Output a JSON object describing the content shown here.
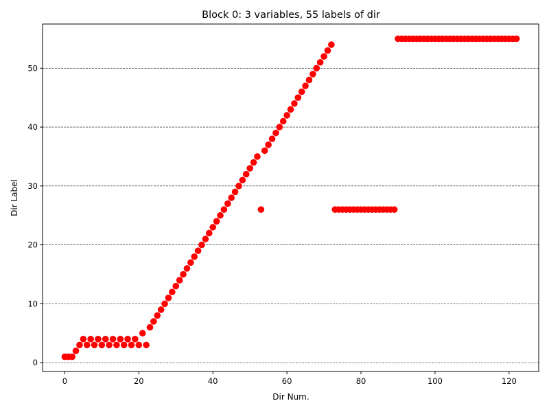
{
  "chart_data": {
    "type": "scatter",
    "title": "Block 0: 3 variables, 55 labels of dir",
    "xlabel": "Dir Num.",
    "ylabel": "Dir Label",
    "xlim": [
      -6,
      128
    ],
    "ylim": [
      -1.5,
      57.5
    ],
    "xticks": [
      0,
      20,
      40,
      60,
      80,
      100,
      120
    ],
    "yticks": [
      0,
      10,
      20,
      30,
      40,
      50
    ],
    "grid": "horizontal-dashed",
    "marker_color": "#ff0000",
    "series": [
      {
        "x": [
          0,
          1,
          2,
          3,
          4,
          5,
          6,
          7,
          8,
          9,
          10,
          11,
          12,
          13,
          14,
          15,
          16,
          17,
          18,
          19,
          20,
          21,
          22,
          23,
          24,
          25,
          26,
          27,
          28,
          29,
          30,
          31,
          32,
          33,
          34,
          35,
          36,
          37,
          38,
          39,
          40,
          41,
          42,
          43,
          44,
          45,
          46,
          47,
          48,
          49,
          50,
          51,
          52,
          53,
          54,
          55,
          56,
          57,
          58,
          59,
          60,
          61,
          62,
          63,
          64,
          65,
          66,
          67,
          68,
          69,
          70,
          71,
          72,
          73,
          74,
          75,
          76,
          77,
          78,
          79,
          80,
          81,
          82,
          83,
          84,
          85,
          86,
          87,
          88,
          89,
          90,
          91,
          92,
          93,
          94,
          95,
          96,
          97,
          98,
          99,
          100,
          101,
          102,
          103,
          104,
          105,
          106,
          107,
          108,
          109,
          110,
          111,
          112,
          113,
          114,
          115,
          116,
          117,
          118,
          119,
          120,
          121,
          122
        ],
        "y": [
          1,
          1,
          1,
          2,
          3,
          4,
          3,
          4,
          3,
          4,
          3,
          4,
          3,
          4,
          3,
          4,
          3,
          4,
          3,
          4,
          3,
          5,
          3,
          6,
          7,
          8,
          9,
          10,
          11,
          12,
          13,
          14,
          15,
          16,
          17,
          18,
          19,
          20,
          21,
          22,
          23,
          24,
          25,
          26,
          27,
          28,
          29,
          30,
          31,
          32,
          33,
          34,
          35,
          26,
          36,
          37,
          38,
          39,
          40,
          41,
          42,
          43,
          44,
          45,
          46,
          47,
          48,
          49,
          50,
          51,
          52,
          53,
          54,
          26,
          26,
          26,
          26,
          26,
          26,
          26,
          26,
          26,
          26,
          26,
          26,
          26,
          26,
          26,
          26,
          26,
          55,
          55,
          55,
          55,
          55,
          55,
          55,
          55,
          55,
          55,
          55,
          55,
          55,
          55,
          55,
          55,
          55,
          55,
          55,
          55,
          55,
          55,
          55,
          55,
          55,
          55,
          55,
          55,
          55,
          55,
          55,
          55,
          55
        ]
      }
    ]
  }
}
